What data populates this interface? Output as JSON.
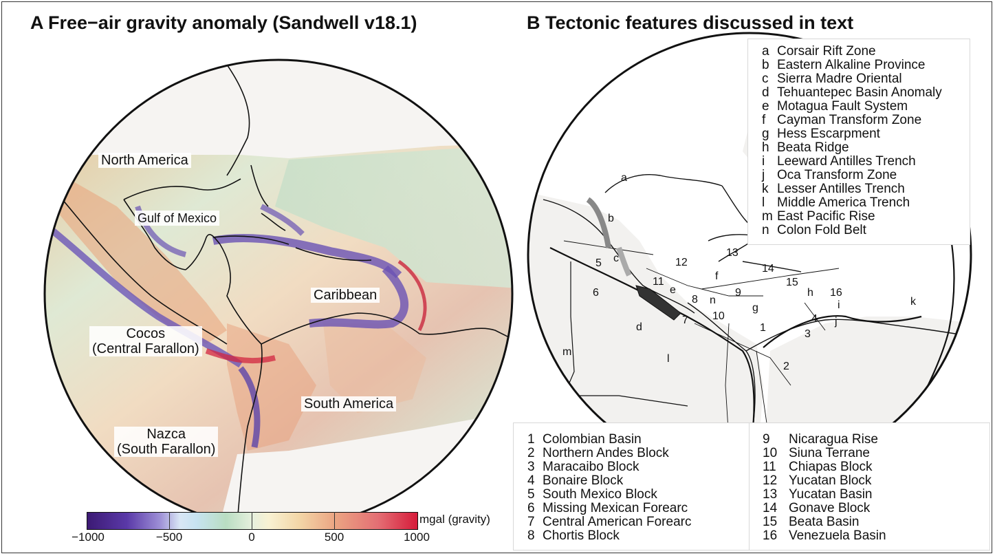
{
  "panel_a": {
    "title": "A  Free−air gravity anomaly (Sandwell v18.1)",
    "labels": {
      "north_america": "North America",
      "gulf_of_mexico": "Gulf of Mexico",
      "caribbean": "Caribbean",
      "cocos": "Cocos\n(Central Farallon)",
      "south_america": "South America",
      "nazca": "Nazca\n(South Farallon)"
    },
    "colorbar": {
      "unit": "mgal (gravity)",
      "ticks": [
        "−1000",
        "−500",
        "0",
        "500",
        "1000"
      ],
      "range": [
        -1000,
        1000
      ]
    }
  },
  "panel_b": {
    "title": "B  Tectonic features discussed in text",
    "letter_legend": [
      {
        "key": "a",
        "label": "Corsair Rift Zone"
      },
      {
        "key": "b",
        "label": "Eastern Alkaline Province"
      },
      {
        "key": "c",
        "label": "Sierra Madre Oriental"
      },
      {
        "key": "d",
        "label": "Tehuantepec Basin Anomaly"
      },
      {
        "key": "e",
        "label": "Motagua Fault System"
      },
      {
        "key": "f",
        "label": "Cayman Transform Zone"
      },
      {
        "key": "g",
        "label": "Hess Escarpment"
      },
      {
        "key": "h",
        "label": "Beata Ridge"
      },
      {
        "key": "i",
        "label": "Leeward Antilles Trench"
      },
      {
        "key": "j",
        "label": "Oca Transform Zone"
      },
      {
        "key": "k",
        "label": "Lesser Antilles Trench"
      },
      {
        "key": "l",
        "label": "Middle America Trench"
      },
      {
        "key": "m",
        "label": "East Pacific Rise"
      },
      {
        "key": "n",
        "label": "Colon Fold Belt"
      }
    ],
    "number_legend_left": [
      {
        "key": "1",
        "label": "Colombian Basin"
      },
      {
        "key": "2",
        "label": "Northern Andes Block"
      },
      {
        "key": "3",
        "label": "Maracaibo Block"
      },
      {
        "key": "4",
        "label": "Bonaire Block"
      },
      {
        "key": "5",
        "label": "South Mexico Block"
      },
      {
        "key": "6",
        "label": "Missing Mexican Forearc"
      },
      {
        "key": "7",
        "label": "Central American Forearc"
      },
      {
        "key": "8",
        "label": "Chortis Block"
      }
    ],
    "number_legend_right": [
      {
        "key": "9",
        "label": "Nicaragua Rise"
      },
      {
        "key": "10",
        "label": "Siuna Terrane"
      },
      {
        "key": "11",
        "label": "Chiapas Block"
      },
      {
        "key": "12",
        "label": "Yucatan Block"
      },
      {
        "key": "13",
        "label": "Yucatan Basin"
      },
      {
        "key": "14",
        "label": "Gonave Block"
      },
      {
        "key": "15",
        "label": "Beata Basin"
      },
      {
        "key": "16",
        "label": "Venezuela Basin"
      }
    ],
    "map_markers": [
      "a",
      "b",
      "c",
      "d",
      "e",
      "f",
      "g",
      "h",
      "i",
      "j",
      "k",
      "l",
      "m",
      "n",
      "1",
      "2",
      "3",
      "4",
      "5",
      "6",
      "7",
      "8",
      "9",
      "10",
      "11",
      "12",
      "13",
      "14",
      "15",
      "16"
    ]
  },
  "colors": {
    "low": "#3c1a74",
    "mid": "#e6f0dd",
    "high": "#d61b3a",
    "land": "#f6f4f2",
    "frame": "#111111"
  }
}
